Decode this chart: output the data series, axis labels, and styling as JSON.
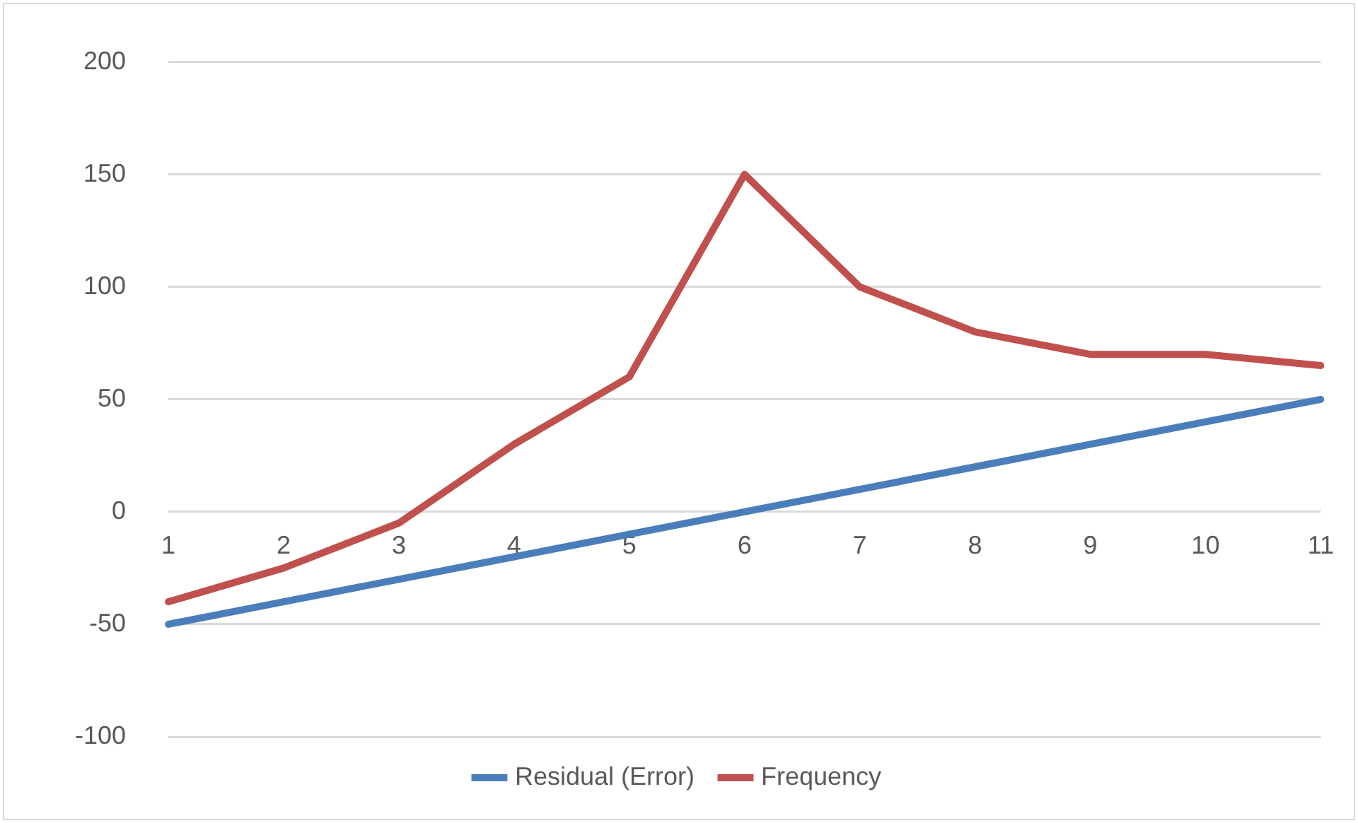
{
  "chart_data": {
    "type": "line",
    "categories": [
      "1",
      "2",
      "3",
      "4",
      "5",
      "6",
      "7",
      "8",
      "9",
      "10",
      "11"
    ],
    "series": [
      {
        "name": "Residual (Error)",
        "color": "#4a7ebb",
        "values": [
          -50,
          -40,
          -30,
          -20,
          -10,
          0,
          10,
          20,
          30,
          40,
          50
        ]
      },
      {
        "name": "Frequency",
        "color": "#c0504d",
        "values": [
          -40,
          -25,
          -5,
          30,
          60,
          150,
          100,
          80,
          70,
          70,
          65
        ]
      }
    ],
    "ylim": [
      -100,
      200
    ],
    "yticks": [
      -100,
      -50,
      0,
      50,
      100,
      150,
      200
    ],
    "grid": "y",
    "legend": "bottom",
    "marker": "none",
    "line_style": "solid"
  }
}
